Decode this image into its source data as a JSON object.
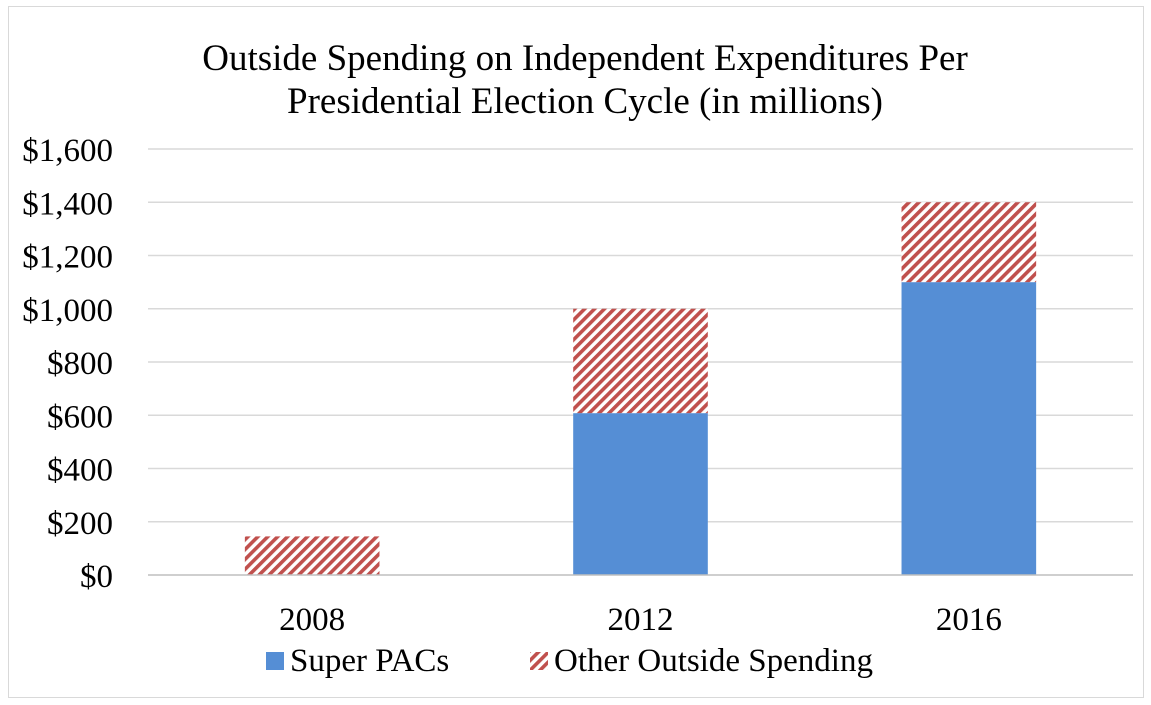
{
  "chart_data": {
    "type": "bar",
    "stacked": true,
    "title": [
      "Outside Spending on Independent Expenditures Per",
      "Presidential Election Cycle (in millions)"
    ],
    "categories": [
      "2008",
      "2012",
      "2016"
    ],
    "series": [
      {
        "name": "Super PACs",
        "values": [
          0,
          608,
          1100
        ],
        "color": "#558ed5",
        "pattern": "solid"
      },
      {
        "name": "Other Outside Spending",
        "values": [
          145,
          392,
          300
        ],
        "color": "#c0504d",
        "pattern": "diagonal-stripes"
      }
    ],
    "yticks": [
      "$0",
      "$200",
      "$400",
      "$600",
      "$800",
      "$1,000",
      "$1,200",
      "$1,400",
      "$1,600"
    ],
    "ylim": [
      0,
      1600
    ],
    "grid": true,
    "legend": "bottom"
  }
}
